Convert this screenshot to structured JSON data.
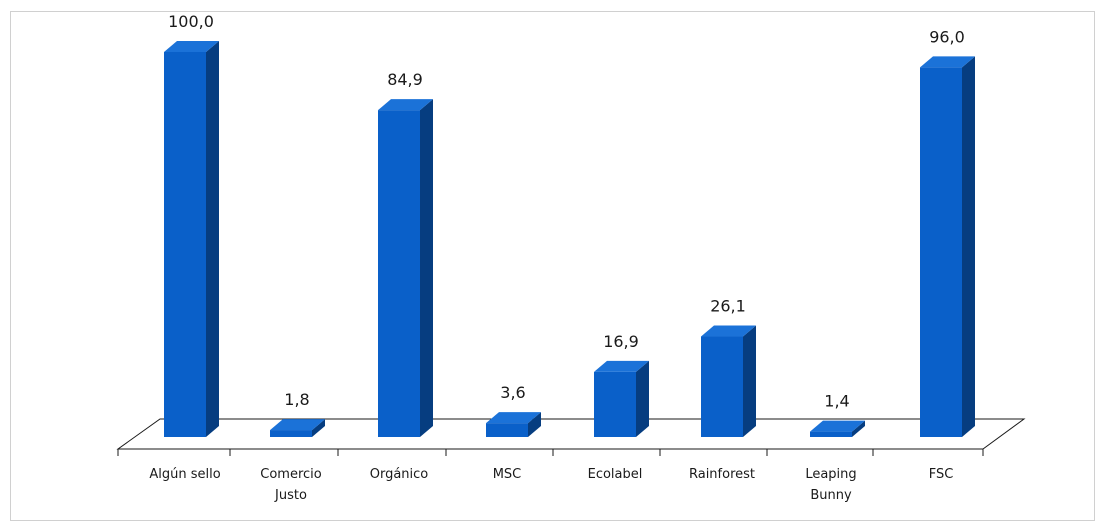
{
  "chart_data": {
    "type": "bar",
    "title": "",
    "xlabel": "",
    "ylabel": "",
    "categories": [
      [
        "Algún sello"
      ],
      [
        "Comercio",
        "Justo"
      ],
      [
        "Orgánico"
      ],
      [
        "MSC"
      ],
      [
        "Ecolabel"
      ],
      [
        "Rainforest"
      ],
      [
        "Leaping",
        "Bunny"
      ],
      [
        "FSC"
      ]
    ],
    "values": [
      100.0,
      1.8,
      84.9,
      3.6,
      16.9,
      26.1,
      1.4,
      96.0
    ],
    "value_labels": [
      "100,0",
      "1,8",
      "84,9",
      "3,6",
      "16,9",
      "26,1",
      "1,4",
      "96,0"
    ],
    "ylim": [
      0,
      100
    ],
    "grid": false,
    "legend": "none",
    "style": "3d-column",
    "colors": {
      "bar_front": "#0a60c9",
      "bar_side": "#063d80",
      "bar_top": "#1b72d8",
      "floor": "#ffffff",
      "floor_stroke": "#1a1a1a",
      "frame": "#d0d0d0"
    }
  }
}
